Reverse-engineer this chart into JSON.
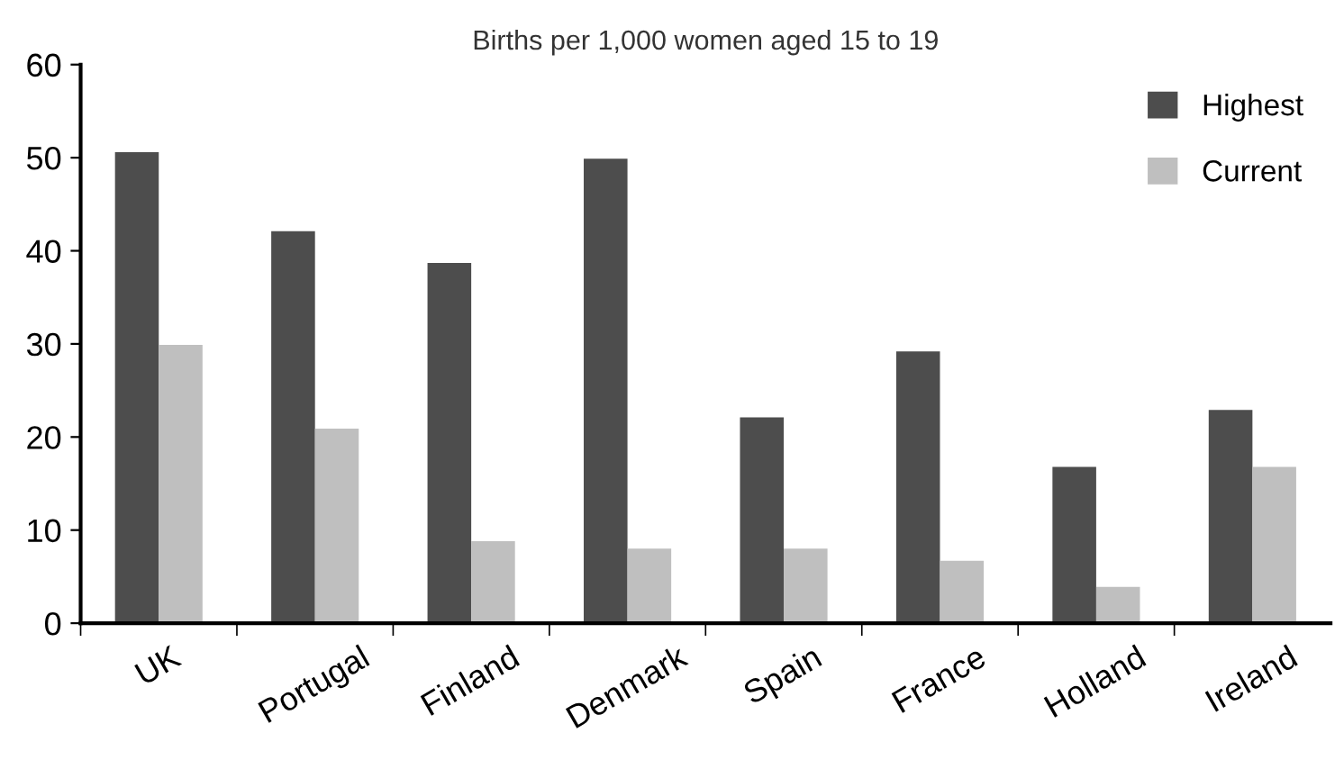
{
  "chart_data": {
    "type": "bar",
    "title": "Births per 1,000 women aged 15 to 19",
    "categories": [
      "UK",
      "Portugal",
      "Finland",
      "Denmark",
      "Spain",
      "France",
      "Holland",
      "Ireland"
    ],
    "series": [
      {
        "name": "Highest",
        "color": "#4d4d4d",
        "values": [
          50.6,
          42.1,
          38.7,
          49.9,
          22.1,
          29.2,
          16.8,
          22.9
        ]
      },
      {
        "name": "Current",
        "color": "#bfbfbf",
        "values": [
          29.9,
          20.9,
          8.8,
          8.0,
          8.0,
          6.7,
          3.9,
          16.8
        ]
      }
    ],
    "ylim": [
      0,
      60
    ],
    "yticks": [
      0,
      10,
      20,
      30,
      40,
      50,
      60
    ],
    "grid": false,
    "legend": "top right"
  }
}
